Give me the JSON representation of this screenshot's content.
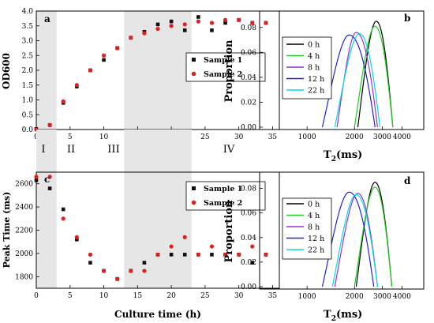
{
  "chart_data": [
    {
      "panel": "a",
      "type": "scatter",
      "ylabel": "OD600",
      "xlim": [
        0,
        36
      ],
      "ylim": [
        0,
        4.0
      ],
      "x_ticks": [
        "0",
        "5",
        "10",
        "15",
        "20",
        "25",
        "30",
        "35"
      ],
      "y_ticks": [
        "0.0",
        "0.5",
        "1.0",
        "1.5",
        "2.0",
        "2.5",
        "3.0",
        "3.5",
        "4.0"
      ],
      "shaded_regions": [
        [
          0,
          3
        ],
        [
          13,
          23
        ]
      ],
      "legend_position": "right",
      "series": [
        {
          "name": "Sample 1",
          "color": "#111111",
          "marker": "square",
          "x": [
            0,
            2,
            4,
            6,
            8,
            10,
            12,
            14,
            16,
            18,
            20,
            22,
            24,
            26,
            28,
            30,
            32,
            34
          ],
          "y": [
            0.02,
            0.15,
            0.9,
            1.45,
            2.0,
            2.35,
            2.75,
            3.1,
            3.3,
            3.55,
            3.65,
            3.35,
            3.8,
            3.35,
            3.6,
            3.7,
            3.6,
            3.6
          ]
        },
        {
          "name": "Sample 2",
          "color": "#e02020",
          "marker": "circle",
          "x": [
            0,
            2,
            4,
            6,
            8,
            10,
            12,
            14,
            16,
            18,
            20,
            22,
            24,
            26,
            28,
            30,
            32,
            34
          ],
          "y": [
            0.0,
            0.15,
            0.95,
            1.5,
            2.0,
            2.5,
            2.75,
            3.1,
            3.25,
            3.4,
            3.5,
            3.55,
            3.65,
            3.6,
            3.7,
            3.7,
            3.6,
            3.6
          ]
        }
      ]
    },
    {
      "panel": "b",
      "type": "area",
      "xlabel_main": "T",
      "xlabel_sub": "2",
      "xlabel_rest": "(ms)",
      "ylabel": "Proportion",
      "x_scale": "log",
      "x_ticks": [
        "1000",
        "2000",
        "3000",
        "4000"
      ],
      "y_ticks": [
        "0.00",
        "0.02",
        "0.04",
        "0.06",
        "0.08"
      ],
      "ylim": [
        0,
        0.09
      ],
      "legend_position": "left",
      "series": [
        {
          "name": "0 h",
          "color": "#000000",
          "x_range": [
            2100,
            3500
          ],
          "peak": 2750,
          "height": 0.085
        },
        {
          "name": "4 h",
          "color": "#22cc22",
          "x_range": [
            2000,
            3500
          ],
          "peak": 2700,
          "height": 0.081
        },
        {
          "name": "8 h",
          "color": "#9933cc",
          "x_range": [
            1550,
            2800
          ],
          "peak": 2050,
          "height": 0.076
        },
        {
          "name": "12 h",
          "color": "#2222cc",
          "x_range": [
            1250,
            2700
          ],
          "peak": 1850,
          "height": 0.074
        },
        {
          "name": "22 h",
          "color": "#00dddd",
          "x_range": [
            1500,
            2900
          ],
          "peak": 2150,
          "height": 0.075
        }
      ]
    },
    {
      "panel": "c",
      "type": "scatter",
      "ylabel": "Peak Time (ms)",
      "xlabel": "Culture time (h)",
      "xlim": [
        0,
        36
      ],
      "ylim": [
        1700,
        2700
      ],
      "x_ticks": [
        "0",
        "5",
        "10",
        "15",
        "20",
        "25",
        "30",
        "35"
      ],
      "y_ticks": [
        "1800",
        "2000",
        "2200",
        "2400",
        "2600"
      ],
      "shaded_regions": [
        [
          0,
          3
        ],
        [
          13,
          23
        ]
      ],
      "legend_position": "right",
      "series": [
        {
          "name": "Sample 1",
          "color": "#111111",
          "marker": "square",
          "x": [
            0,
            2,
            4,
            6,
            8,
            10,
            12,
            14,
            16,
            18,
            20,
            22,
            24,
            26,
            28,
            30,
            32,
            34
          ],
          "y": [
            2630,
            2560,
            2380,
            2120,
            1920,
            1850,
            1780,
            1850,
            1920,
            1990,
            1990,
            1990,
            1990,
            1990,
            1990,
            1990,
            1920,
            1990
          ]
        },
        {
          "name": "Sample 2",
          "color": "#e02020",
          "marker": "circle",
          "x": [
            0,
            2,
            4,
            6,
            8,
            10,
            12,
            14,
            16,
            18,
            20,
            22,
            24,
            26,
            28,
            30,
            32,
            34
          ],
          "y": [
            2660,
            2660,
            2300,
            2140,
            1990,
            1850,
            1780,
            1850,
            1850,
            1990,
            2060,
            2140,
            1990,
            2060,
            1990,
            1990,
            2060,
            1990
          ]
        }
      ]
    },
    {
      "panel": "d",
      "type": "area",
      "xlabel_main": "T",
      "xlabel_sub": "2",
      "xlabel_rest": "(ms)",
      "ylabel": "Proportion",
      "x_scale": "log",
      "x_ticks": [
        "1000",
        "2000",
        "3000",
        "4000"
      ],
      "y_ticks": [
        "0.00",
        "0.02",
        "0.04",
        "0.06",
        "0.08"
      ],
      "ylim": [
        0,
        0.09
      ],
      "legend_position": "left",
      "series": [
        {
          "name": "0 h",
          "color": "#000000",
          "x_range": [
            2050,
            3450
          ],
          "peak": 2700,
          "height": 0.085
        },
        {
          "name": "4 h",
          "color": "#22cc22",
          "x_range": [
            2000,
            3450
          ],
          "peak": 2700,
          "height": 0.081
        },
        {
          "name": "8 h",
          "color": "#9933cc",
          "x_range": [
            1500,
            2800
          ],
          "peak": 2100,
          "height": 0.076
        },
        {
          "name": "12 h",
          "color": "#2222cc",
          "x_range": [
            1250,
            2650
          ],
          "peak": 1850,
          "height": 0.077
        },
        {
          "name": "22 h",
          "color": "#00dddd",
          "x_range": [
            1450,
            2800
          ],
          "peak": 2050,
          "height": 0.075
        }
      ]
    }
  ],
  "phase_labels": [
    "I",
    "II",
    "III",
    "IV"
  ]
}
